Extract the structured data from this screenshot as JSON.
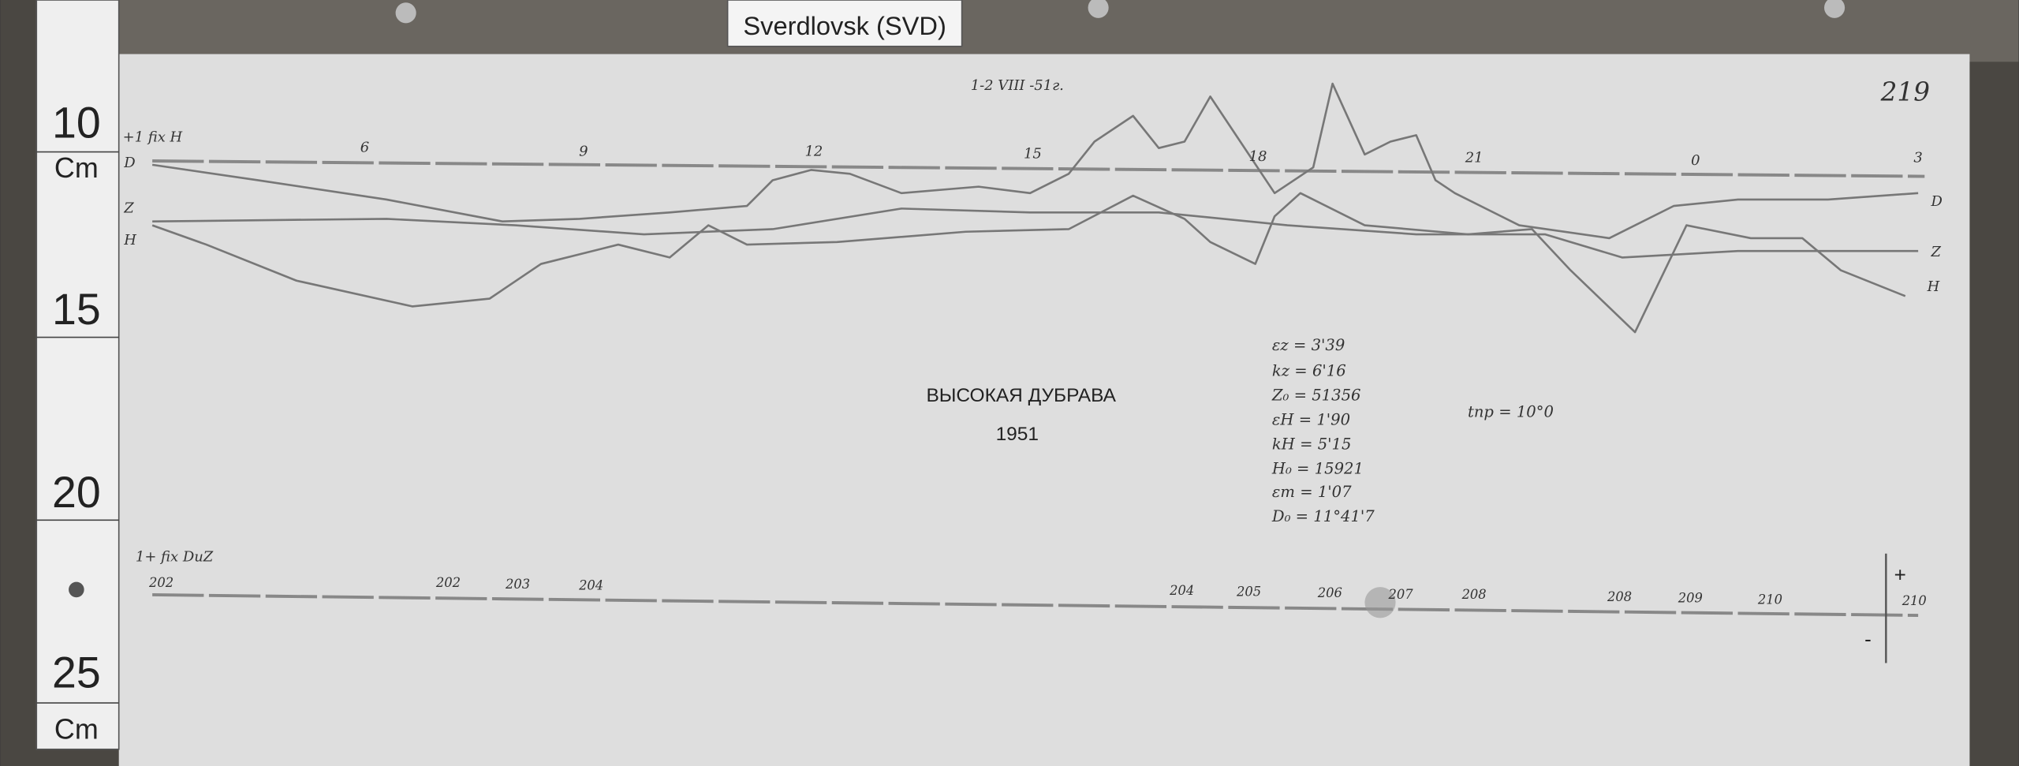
{
  "header": {
    "label": "Sverdlovsk (SVD)"
  },
  "ruler": {
    "marks": [
      "10",
      "Cm",
      "15",
      "20",
      "25",
      "Cm"
    ]
  },
  "sheet": {
    "page_number": "219",
    "date_note": "1-2 VIII -51г.",
    "hours": [
      "6",
      "9",
      "12",
      "15",
      "18",
      "21",
      "0",
      "3"
    ],
    "left_labels": [
      "+1 fix H",
      "D",
      "Z",
      "H"
    ],
    "right_labels": [
      "D",
      "Z",
      "H"
    ],
    "station": "ВЫСОКАЯ ДУБРАВА",
    "year": "1951",
    "constants": [
      "εz = 3'39",
      "kz = 6'16",
      "Z₀ = 51356",
      "εH = 1'90",
      "kH = 5'15",
      "H₀ = 15921",
      "εm = 1'07",
      "D₀ = 11°41'7"
    ],
    "temperature": "tпр = 10°0",
    "baseline_label": "1+ fix DuZ",
    "baseline_marks": [
      "202",
      "202",
      "203",
      "204",
      "204",
      "205",
      "206",
      "207",
      "208",
      "208",
      "209",
      "210",
      "210"
    ],
    "polarity": [
      "+",
      "-"
    ]
  }
}
